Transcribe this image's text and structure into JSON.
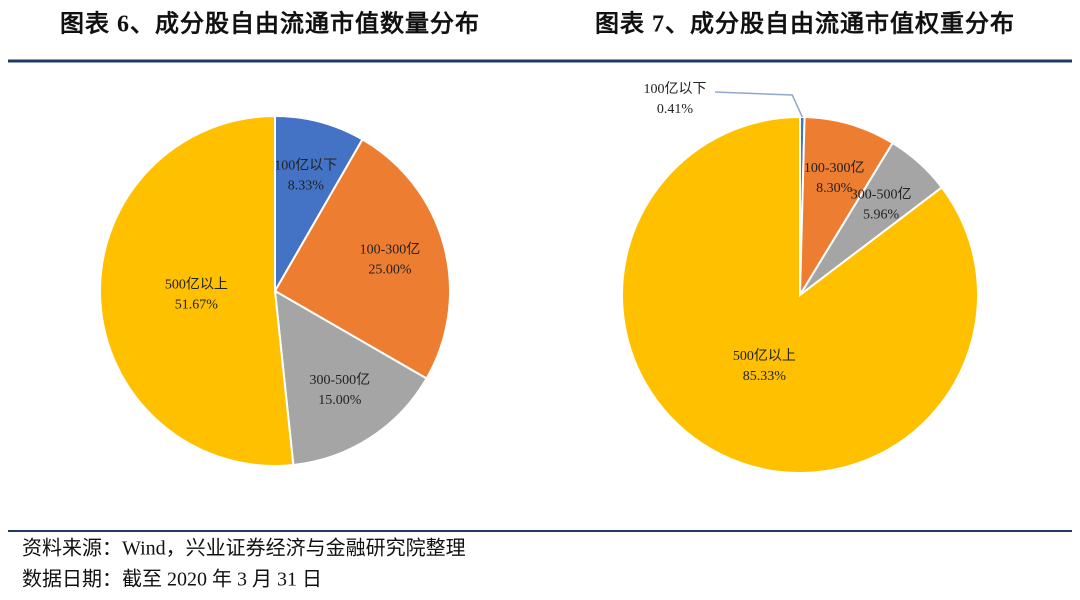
{
  "chart_data": [
    {
      "type": "pie",
      "title": "图表 6、成分股自由流通市值数量分布",
      "categories": [
        "100亿以下",
        "100-300亿",
        "300-500亿",
        "500亿以上"
      ],
      "values": [
        8.33,
        25.0,
        15.0,
        51.67
      ],
      "value_labels": [
        "8.33%",
        "25.00%",
        "15.00%",
        "51.67%"
      ],
      "colors": [
        "#4472c4",
        "#ed7d31",
        "#a5a5a5",
        "#ffc000"
      ]
    },
    {
      "type": "pie",
      "title": "图表 7、成分股自由流通市值权重分布",
      "categories": [
        "100亿以下",
        "100-300亿",
        "300-500亿",
        "500亿以上"
      ],
      "values": [
        0.41,
        8.3,
        5.96,
        85.33
      ],
      "value_labels": [
        "0.41%",
        "8.30%",
        "5.96%",
        "85.33%"
      ],
      "colors": [
        "#4472c4",
        "#ed7d31",
        "#a5a5a5",
        "#ffc000"
      ]
    }
  ],
  "source": "资料来源：Wind，兴业证券经济与金融研究院整理",
  "date": "数据日期：截至 2020 年 3 月 31 日"
}
